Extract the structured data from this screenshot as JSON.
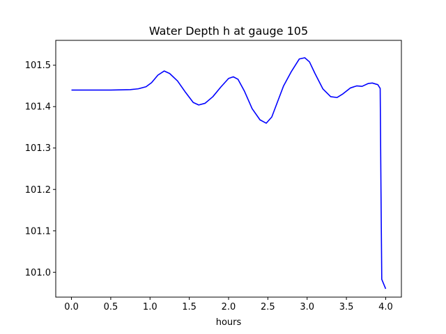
{
  "chart_data": {
    "type": "line",
    "title": "Water Depth h at gauge 105",
    "xlabel": "hours",
    "ylabel": "",
    "xlim": [
      -0.2,
      4.2
    ],
    "ylim": [
      100.94,
      101.56
    ],
    "xticks": [
      0.0,
      0.5,
      1.0,
      1.5,
      2.0,
      2.5,
      3.0,
      3.5,
      4.0
    ],
    "xtick_labels": [
      "0.0",
      "0.5",
      "1.0",
      "1.5",
      "2.0",
      "2.5",
      "3.0",
      "3.5",
      "4.0"
    ],
    "yticks": [
      101.0,
      101.1,
      101.2,
      101.3,
      101.4,
      101.5
    ],
    "ytick_labels": [
      "101.0",
      "101.1",
      "101.2",
      "101.3",
      "101.4",
      "101.5"
    ],
    "grid": false,
    "legend": "none",
    "series": [
      {
        "color": "#0000ff",
        "x": [
          0.0,
          0.25,
          0.5,
          0.75,
          0.85,
          0.95,
          1.02,
          1.1,
          1.18,
          1.25,
          1.35,
          1.45,
          1.55,
          1.62,
          1.7,
          1.8,
          1.9,
          2.0,
          2.06,
          2.12,
          2.2,
          2.3,
          2.4,
          2.48,
          2.55,
          2.62,
          2.7,
          2.8,
          2.9,
          2.97,
          3.03,
          3.1,
          3.2,
          3.3,
          3.38,
          3.45,
          3.55,
          3.63,
          3.7,
          3.78,
          3.83,
          3.9,
          3.93,
          3.94,
          3.95,
          4.0
        ],
        "y": [
          101.44,
          101.44,
          101.44,
          101.441,
          101.443,
          101.448,
          101.458,
          101.476,
          101.486,
          101.48,
          101.462,
          101.435,
          101.41,
          101.404,
          101.408,
          101.424,
          101.447,
          101.468,
          101.472,
          101.466,
          101.438,
          101.395,
          101.368,
          101.36,
          101.375,
          101.41,
          101.45,
          101.485,
          101.515,
          101.518,
          101.508,
          101.48,
          101.443,
          101.424,
          101.422,
          101.43,
          101.445,
          101.45,
          101.449,
          101.456,
          101.457,
          101.453,
          101.444,
          101.2,
          100.983,
          100.96
        ]
      }
    ]
  }
}
